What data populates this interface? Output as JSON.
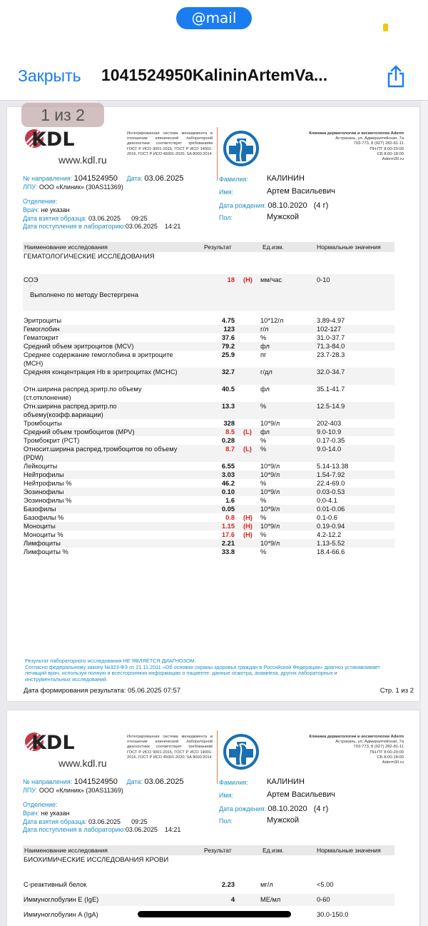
{
  "status_bar": {
    "brand": "@mail",
    "brand_color": "#1a7cf0"
  },
  "nav": {
    "close_label": "Закрыть",
    "title": "1041524950KalininArtemVa...",
    "share_icon": "share-icon"
  },
  "viewer": {
    "page_counter": "1 из 2"
  },
  "header": {
    "logo_text": "KDL",
    "website": "www.kdl.ru",
    "iso_text": "Интегрированная система менеджмента в отношении клинической лабораторной диагностики соответствует требованиям ГОСТ Р ИСО 9001-2015, ГОСТ Р ИСО 14001-2016, ГОСТ Р ИСО 45001-2020, SA 8000:2014",
    "clinic_lines": [
      "Клиника дерматологии и косметологии Aderm",
      "Астрахань, ул. Адмиралтейская, 7а",
      "703-773, 8 (927) 282-81-11",
      "ПН-ПТ 8:00-20:00",
      "СБ 8:00-18:00",
      "Aderm30.ru"
    ]
  },
  "patient": {
    "referral_label": "№ направления:",
    "referral": "1041524950",
    "date_label": "Дата:",
    "date": "03.06.2025",
    "lpu_label": "ЛПУ:",
    "lpu": "ООО «Клиник» (30AS11369)",
    "dept_label": "Отделение:",
    "doctor_label": "Врач:",
    "doctor": "не указан",
    "sample_label": "Дата взятия образца:",
    "sample": "03.06.2025      09:25",
    "received_label": "Дата поступления в лабораторию:",
    "received": "03.06.2025    14:21",
    "surname_label": "Фамилия:",
    "surname": "КАЛИНИН",
    "name_label": "Имя:",
    "name": "Артем Васильевич",
    "dob_label": "Дата рождения:",
    "dob": "08.10.2020   (4 г)",
    "sex_label": "Пол:",
    "sex": "Мужской"
  },
  "table_header": {
    "name": "Наименование исследования",
    "result": "Результат",
    "unit": "Ед.изм.",
    "range": "Нормальные значения"
  },
  "page1": {
    "section": "ГЕМАТОЛОГИЧЕСКИЕ ИССЛЕДОВАНИЯ",
    "esr": {
      "name": "СОЭ",
      "result": "18",
      "flag": "(H)",
      "unit": "мм/час",
      "range": "0-10",
      "dot": ".",
      "note": "Выполнено по методу Вестергрена"
    },
    "rows": [
      {
        "name": "Эритроциты",
        "result": "4.75",
        "flag": "",
        "unit": "10*12/л",
        "range": "3.89-4.97"
      },
      {
        "name": "Гемоглобин",
        "result": "123",
        "flag": "",
        "unit": "г/л",
        "range": "102-127"
      },
      {
        "name": "Гематокрит",
        "result": "37.6",
        "flag": "",
        "unit": "%",
        "range": "31.0-37.7"
      },
      {
        "name": "Средний объем эритроцитов (MCV)",
        "result": "79.2",
        "flag": "",
        "unit": "фл",
        "range": "71.3-84.0"
      },
      {
        "name": "Среднее содержание гемоглобина в эритроците (MCH)",
        "result": "25.9",
        "flag": "",
        "unit": "пг",
        "range": "23.7-28.3"
      },
      {
        "name": "Средняя концентрация Hb в эритроцитах (MCHC)",
        "result": "32.7",
        "flag": "",
        "unit": "г/дл",
        "range": "32.0-34.7"
      },
      {
        "name": "Отн.ширина распред.эритр.по объему (ст.отклонение)",
        "result": "40.5",
        "flag": "",
        "unit": "фл",
        "range": "35.1-41.7"
      },
      {
        "name": "Отн.ширина распред.эритр.по объему(коэфф.вариации)",
        "result": "13.3",
        "flag": "",
        "unit": "%",
        "range": "12.5-14.9"
      },
      {
        "name": "Тромбоциты",
        "result": "328",
        "flag": "",
        "unit": "10*9/л",
        "range": "202-403"
      },
      {
        "name": "Средний объем тромбоцитов (MPV)",
        "result": "8.5",
        "flag": "(L)",
        "unit": "фл",
        "range": "9.0-10.9"
      },
      {
        "name": "Тромбокрит (PCT)",
        "result": "0.28",
        "flag": "",
        "unit": "%",
        "range": "0.17-0.35"
      },
      {
        "name": "Относит.ширина распред.тромбоцитов по объему (PDW)",
        "result": "8.7",
        "flag": "(L)",
        "unit": "%",
        "range": "9.0-14.0"
      },
      {
        "name": "Лейкоциты",
        "result": "6.55",
        "flag": "",
        "unit": "10*9/л",
        "range": "5.14-13.38"
      },
      {
        "name": "Нейтрофилы",
        "result": "3.03",
        "flag": "",
        "unit": "10*9/л",
        "range": "1.54-7.92"
      },
      {
        "name": "Нейтрофилы %",
        "result": "46.2",
        "flag": "",
        "unit": "%",
        "range": "22.4-69.0"
      },
      {
        "name": "Эозинофилы",
        "result": "0.10",
        "flag": "",
        "unit": "10*9/л",
        "range": "0.03-0.53"
      },
      {
        "name": "Эозинофилы %",
        "result": "1.6",
        "flag": "",
        "unit": "%",
        "range": "0.0-4.1"
      },
      {
        "name": "Базофилы",
        "result": "0.05",
        "flag": "",
        "unit": "10*9/л",
        "range": "0.01-0.06"
      },
      {
        "name": "Базофилы %",
        "result": "0.8",
        "flag": "(H)",
        "unit": "%",
        "range": "0.1-0.6"
      },
      {
        "name": "Моноциты",
        "result": "1.15",
        "flag": "(H)",
        "unit": "10*9/л",
        "range": "0.19-0.94"
      },
      {
        "name": "Моноциты %",
        "result": "17.6",
        "flag": "(H)",
        "unit": "%",
        "range": "4.2-12.2"
      },
      {
        "name": "Лимфоциты",
        "result": "2.21",
        "flag": "",
        "unit": "10*9/л",
        "range": "1.13-5.52"
      },
      {
        "name": "Лимфоциты %",
        "result": "33.8",
        "flag": "",
        "unit": "%",
        "range": "18.4-66.6"
      }
    ],
    "disclaimer": [
      "Результат лабораторного исследования НЕ ЯВЛЯЕТСЯ ДИАГНОЗОМ.",
      "Согласно федеральному закону №323-ФЗ от 21.11.2011 «Об основах охраны здоровья граждан в Российской Федерации» диагноз устанавливает лечащий врач, используя полную и всестороннюю информацию о пациенте: данные осмотра, анамнеза, других лабораторных и инструментальных исследований."
    ],
    "generated": "Дата формирования результата: 05.06.2025 07:57",
    "page_num": "Стр. 1 из 2"
  },
  "page2": {
    "section": "БИОХИМИЧЕСКИЕ ИССЛЕДОВАНИЯ КРОВИ",
    "rows": [
      {
        "name": "С-реактивный белок",
        "result": "2.23",
        "flag": "",
        "unit": "мг/л",
        "range": "<5.00"
      },
      {
        "name": "Иммуноглобулин E (IgE)",
        "result": "4",
        "flag": "",
        "unit": "МЕ/мл",
        "range": "0-60"
      },
      {
        "name": "Иммуноглобулин A (IgA)",
        "result": "",
        "flag": "",
        "unit": "",
        "range": "30.0-150.0"
      }
    ]
  }
}
